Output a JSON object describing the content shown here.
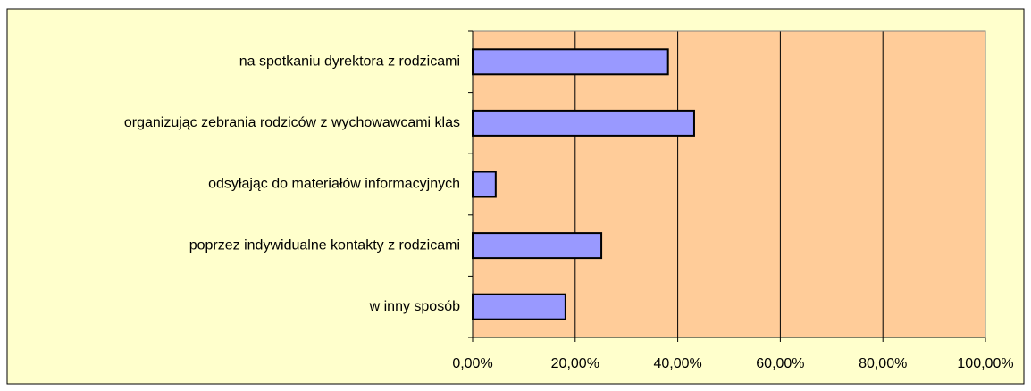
{
  "chart_data": {
    "type": "bar",
    "orientation": "horizontal",
    "categories": [
      "na spotkaniu dyrektora z rodzicami",
      "organizując zebrania rodziców z wychowawcami klas",
      "odsyłając do materiałów informacyjnych",
      "poprzez indywidualne kontakty z rodzicami",
      "w inny sposób"
    ],
    "values": [
      38.1,
      43.2,
      4.5,
      25.1,
      18.1
    ],
    "color": "#9999ff",
    "xlim": [
      0,
      100
    ],
    "xticks": [
      {
        "value": 0,
        "label": "0,00%"
      },
      {
        "value": 20,
        "label": "20,00%"
      },
      {
        "value": 40,
        "label": "40,00%"
      },
      {
        "value": 60,
        "label": "60,00%"
      },
      {
        "value": 80,
        "label": "80,00%"
      },
      {
        "value": 100,
        "label": "100,00%"
      }
    ],
    "grid": true
  }
}
